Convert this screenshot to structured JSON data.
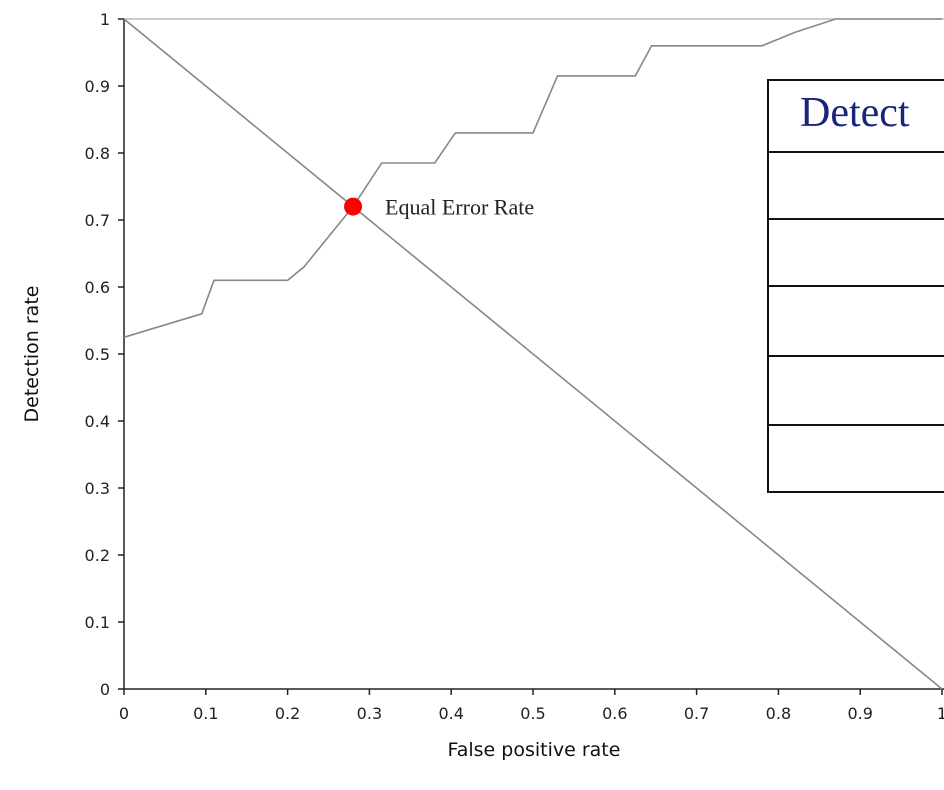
{
  "chart_data": {
    "type": "line",
    "xlabel": "False positive rate",
    "ylabel": "Detection rate",
    "xlim": [
      0,
      1
    ],
    "ylim": [
      0,
      1
    ],
    "x_ticks": [
      "0",
      "0.1",
      "0.2",
      "0.3",
      "0.4",
      "0.5",
      "0.6",
      "0.7",
      "0.8",
      "0.9",
      "1"
    ],
    "y_ticks": [
      "0",
      "0.1",
      "0.2",
      "0.3",
      "0.4",
      "0.5",
      "0.6",
      "0.7",
      "0.8",
      "0.9",
      "1"
    ],
    "grid": false,
    "series": [
      {
        "x": [
          0,
          0.095,
          0.11,
          0.2,
          0.22,
          0.28,
          0.315,
          0.38,
          0.405,
          0.5,
          0.53,
          0.625,
          0.645,
          0.78,
          0.82,
          0.87,
          1.0
        ],
        "y": [
          0.525,
          0.56,
          0.61,
          0.61,
          0.63,
          0.72,
          0.785,
          0.785,
          0.83,
          0.83,
          0.915,
          0.915,
          0.96,
          0.96,
          0.98,
          1.0,
          1.0
        ]
      },
      {
        "x": [
          0,
          1
        ],
        "y": [
          1,
          0
        ]
      }
    ],
    "annotations": [
      {
        "text": "Equal Error Rate",
        "x": 0.28,
        "y": 0.72
      }
    ],
    "marker_color": "#ff0000",
    "line_color": "#888888",
    "table": {
      "title": "Detect",
      "rows": 6
    }
  }
}
